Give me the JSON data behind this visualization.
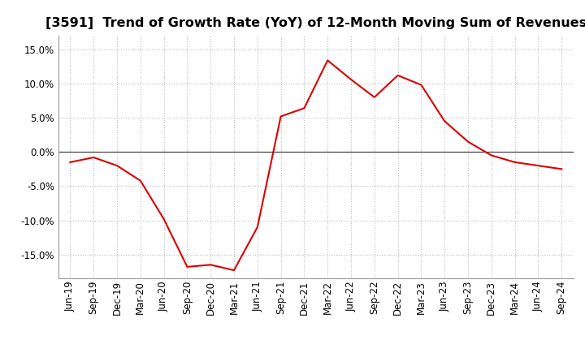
{
  "title": "[3591]  Trend of Growth Rate (YoY) of 12-Month Moving Sum of Revenues",
  "x_labels": [
    "Jun-19",
    "Sep-19",
    "Dec-19",
    "Mar-20",
    "Jun-20",
    "Sep-20",
    "Dec-20",
    "Mar-21",
    "Jun-21",
    "Sep-21",
    "Dec-21",
    "Mar-22",
    "Jun-22",
    "Sep-22",
    "Dec-22",
    "Mar-23",
    "Jun-23",
    "Sep-23",
    "Dec-23",
    "Mar-24",
    "Jun-24",
    "Sep-24"
  ],
  "y_values": [
    -1.5,
    -0.8,
    -2.0,
    -4.2,
    -9.8,
    -16.8,
    -16.5,
    -17.3,
    -11.0,
    5.2,
    6.4,
    13.4,
    10.6,
    8.0,
    11.2,
    9.8,
    4.5,
    1.5,
    -0.5,
    -1.5,
    -2.0,
    -2.5
  ],
  "line_color": "#dd0000",
  "background_color": "#ffffff",
  "plot_bg_color": "#ffffff",
  "grid_color": "#bbbbbb",
  "ylim": [
    -18.5,
    17.0
  ],
  "yticks": [
    -15.0,
    -10.0,
    -5.0,
    0.0,
    5.0,
    10.0,
    15.0
  ],
  "zero_line_color": "#333333",
  "title_fontsize": 11.5,
  "tick_fontsize": 8.5
}
